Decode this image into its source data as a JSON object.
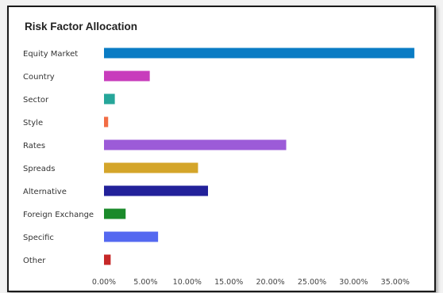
{
  "chart_data": {
    "type": "bar",
    "orientation": "horizontal",
    "title": "Risk Factor Allocation",
    "categories": [
      "Equity Market",
      "Country",
      "Sector",
      "Style",
      "Rates",
      "Spreads",
      "Alternative",
      "Foreign Exchange",
      "Specific",
      "Other"
    ],
    "values": [
      37.3,
      5.5,
      1.3,
      0.5,
      21.9,
      11.3,
      12.5,
      2.6,
      6.5,
      0.8
    ],
    "colors": [
      "#0a7cc4",
      "#c83cbc",
      "#26a69a",
      "#f26d45",
      "#9c5bd8",
      "#d4a52a",
      "#22219a",
      "#1a8a2a",
      "#5468f0",
      "#c62828"
    ],
    "xticks": [
      "0.00%",
      "5.00%",
      "10.00%",
      "15.00%",
      "20.00%",
      "25.00%",
      "30.00%",
      "35.00%"
    ],
    "xlim": [
      0,
      37.5
    ],
    "grid": false,
    "legend": "none"
  }
}
